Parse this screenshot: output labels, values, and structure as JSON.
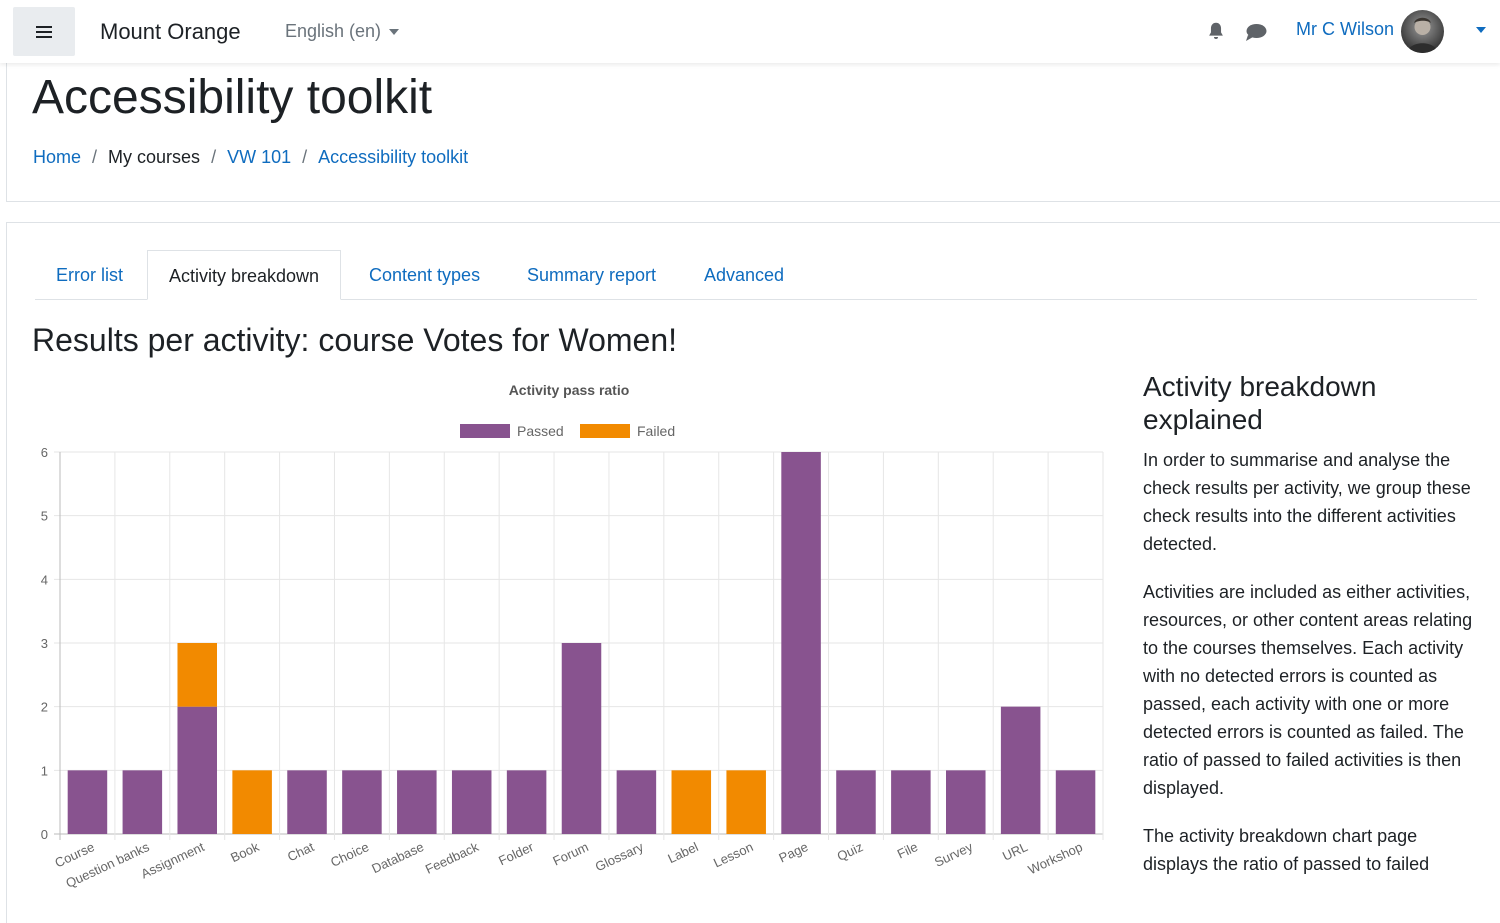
{
  "navbar": {
    "site_name": "Mount Orange",
    "language": "English (en)",
    "user_name": "Mr C Wilson"
  },
  "page": {
    "title": "Accessibility toolkit",
    "breadcrumb": [
      "Home",
      "My courses",
      "VW 101",
      "Accessibility toolkit"
    ]
  },
  "tabs": [
    {
      "label": "Error list",
      "active": false
    },
    {
      "label": "Activity breakdown",
      "active": true
    },
    {
      "label": "Content types",
      "active": false
    },
    {
      "label": "Summary report",
      "active": false
    },
    {
      "label": "Advanced",
      "active": false
    }
  ],
  "section_title": "Results per activity: course Votes for Women!",
  "colors": {
    "passed": "#88538f",
    "failed": "#f28a00",
    "link": "#0f6cbf"
  },
  "chart_data": {
    "type": "bar",
    "stacked": true,
    "title": "Activity pass ratio",
    "legend_position": "top",
    "grid": true,
    "ylim": [
      0,
      6
    ],
    "yticks": [
      0,
      1,
      2,
      3,
      4,
      5,
      6
    ],
    "categories": [
      "Course",
      "Question banks",
      "Assignment",
      "Book",
      "Chat",
      "Choice",
      "Database",
      "Feedback",
      "Folder",
      "Forum",
      "Glossary",
      "Label",
      "Lesson",
      "Page",
      "Quiz",
      "File",
      "Survey",
      "URL",
      "Workshop"
    ],
    "series": [
      {
        "name": "Passed",
        "color": "#88538f",
        "values": [
          1,
          1,
          2,
          0,
          1,
          1,
          1,
          1,
          1,
          3,
          1,
          0,
          0,
          6,
          1,
          1,
          1,
          2,
          1
        ]
      },
      {
        "name": "Failed",
        "color": "#f28a00",
        "values": [
          0,
          0,
          1,
          1,
          0,
          0,
          0,
          0,
          0,
          0,
          0,
          1,
          1,
          0,
          0,
          0,
          0,
          0,
          0
        ]
      }
    ]
  },
  "side_panel": {
    "title": "Activity breakdown explained",
    "paragraphs": [
      "In order to summarise and analyse the check results per activity, we group these check results into the different activities detected.",
      "Activities are included as either activities, resources, or other content areas relating to the courses themselves. Each activity with no detected errors is counted as passed, each activity with one or more detected errors is counted as failed. The ratio of passed to failed activities is then displayed.",
      "The activity breakdown chart page displays the ratio of passed to failed"
    ]
  }
}
